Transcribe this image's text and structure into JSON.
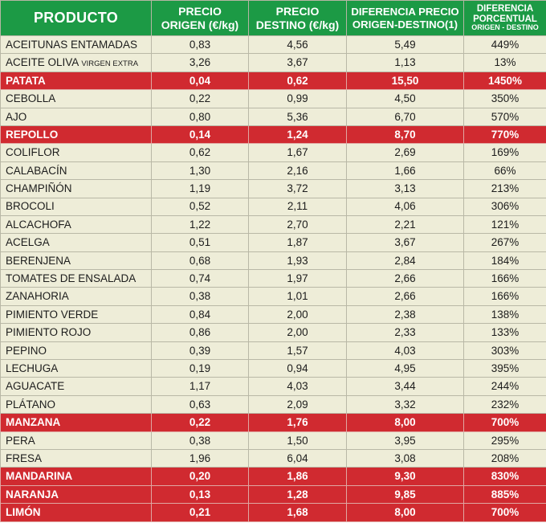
{
  "headers": {
    "producto": "PRODUCTO",
    "precio_origen": [
      "PRECIO",
      "ORIGEN (€/kg)"
    ],
    "precio_destino": [
      "PRECIO",
      "DESTINO (€/kg)"
    ],
    "diferencia": [
      "DIFERENCIA PRECIO",
      "ORIGEN-DESTINO(1)"
    ],
    "porcentual": [
      "DIFERENCIA",
      "PORCENTUAL",
      "ORIGEN - DESTINO"
    ]
  },
  "colors": {
    "header_bg": "#1c9a45",
    "row_bg": "#eeedd8",
    "highlight_bg": "#d02a30"
  },
  "rows": [
    {
      "producto": "ACEITUNAS ENTAMADAS",
      "origen": "0,83",
      "destino": "4,56",
      "diferencia": "5,49",
      "porcentual": "449%",
      "highlight": false
    },
    {
      "producto": "ACEITE OLIVA",
      "nota": "VIRGEN EXTRA",
      "origen": "3,26",
      "destino": "3,67",
      "diferencia": "1,13",
      "porcentual": "13%",
      "highlight": false
    },
    {
      "producto": "PATATA",
      "origen": "0,04",
      "destino": "0,62",
      "diferencia": "15,50",
      "porcentual": "1450%",
      "highlight": true
    },
    {
      "producto": "CEBOLLA",
      "origen": "0,22",
      "destino": "0,99",
      "diferencia": "4,50",
      "porcentual": "350%",
      "highlight": false
    },
    {
      "producto": "AJO",
      "origen": "0,80",
      "destino": "5,36",
      "diferencia": "6,70",
      "porcentual": "570%",
      "highlight": false
    },
    {
      "producto": "REPOLLO",
      "origen": "0,14",
      "destino": "1,24",
      "diferencia": "8,70",
      "porcentual": "770%",
      "highlight": true
    },
    {
      "producto": "COLIFLOR",
      "origen": "0,62",
      "destino": "1,67",
      "diferencia": "2,69",
      "porcentual": "169%",
      "highlight": false
    },
    {
      "producto": "CALABACÍN",
      "origen": "1,30",
      "destino": "2,16",
      "diferencia": "1,66",
      "porcentual": "66%",
      "highlight": false
    },
    {
      "producto": "CHAMPIÑÓN",
      "origen": "1,19",
      "destino": "3,72",
      "diferencia": "3,13",
      "porcentual": "213%",
      "highlight": false
    },
    {
      "producto": "BROCOLI",
      "origen": "0,52",
      "destino": "2,11",
      "diferencia": "4,06",
      "porcentual": "306%",
      "highlight": false
    },
    {
      "producto": "ALCACHOFA",
      "origen": "1,22",
      "destino": "2,70",
      "diferencia": "2,21",
      "porcentual": "121%",
      "highlight": false
    },
    {
      "producto": "ACELGA",
      "origen": "0,51",
      "destino": "1,87",
      "diferencia": "3,67",
      "porcentual": "267%",
      "highlight": false
    },
    {
      "producto": "BERENJENA",
      "origen": "0,68",
      "destino": "1,93",
      "diferencia": "2,84",
      "porcentual": "184%",
      "highlight": false
    },
    {
      "producto": "TOMATES DE ENSALADA",
      "origen": "0,74",
      "destino": "1,97",
      "diferencia": "2,66",
      "porcentual": "166%",
      "highlight": false
    },
    {
      "producto": "ZANAHORIA",
      "origen": "0,38",
      "destino": "1,01",
      "diferencia": "2,66",
      "porcentual": "166%",
      "highlight": false
    },
    {
      "producto": "PIMIENTO VERDE",
      "origen": "0,84",
      "destino": "2,00",
      "diferencia": "2,38",
      "porcentual": "138%",
      "highlight": false
    },
    {
      "producto": "PIMIENTO ROJO",
      "origen": "0,86",
      "destino": "2,00",
      "diferencia": "2,33",
      "porcentual": "133%",
      "highlight": false
    },
    {
      "producto": "PEPINO",
      "origen": "0,39",
      "destino": "1,57",
      "diferencia": "4,03",
      "porcentual": "303%",
      "highlight": false
    },
    {
      "producto": "LECHUGA",
      "origen": "0,19",
      "destino": "0,94",
      "diferencia": "4,95",
      "porcentual": "395%",
      "highlight": false
    },
    {
      "producto": "AGUACATE",
      "origen": "1,17",
      "destino": "4,03",
      "diferencia": "3,44",
      "porcentual": "244%",
      "highlight": false
    },
    {
      "producto": "PLÁTANO",
      "origen": "0,63",
      "destino": "2,09",
      "diferencia": "3,32",
      "porcentual": "232%",
      "highlight": false
    },
    {
      "producto": "MANZANA",
      "origen": "0,22",
      "destino": "1,76",
      "diferencia": "8,00",
      "porcentual": "700%",
      "highlight": true
    },
    {
      "producto": "PERA",
      "origen": "0,38",
      "destino": "1,50",
      "diferencia": "3,95",
      "porcentual": "295%",
      "highlight": false
    },
    {
      "producto": "FRESA",
      "origen": "1,96",
      "destino": "6,04",
      "diferencia": "3,08",
      "porcentual": "208%",
      "highlight": false
    },
    {
      "producto": "MANDARINA",
      "origen": "0,20",
      "destino": "1,86",
      "diferencia": "9,30",
      "porcentual": "830%",
      "highlight": true
    },
    {
      "producto": "NARANJA",
      "origen": "0,13",
      "destino": "1,28",
      "diferencia": "9,85",
      "porcentual": "885%",
      "highlight": true
    },
    {
      "producto": "LIMÓN",
      "origen": "0,21",
      "destino": "1,68",
      "diferencia": "8,00",
      "porcentual": "700%",
      "highlight": true
    }
  ]
}
